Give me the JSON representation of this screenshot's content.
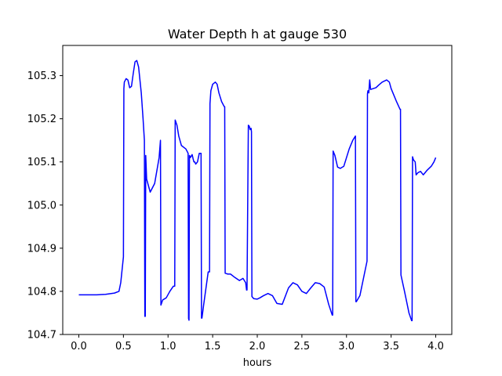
{
  "chart_data": {
    "type": "line",
    "title": "Water Depth h at gauge 530",
    "xlabel": "hours",
    "ylabel": "",
    "xlim": [
      -0.18,
      4.18
    ],
    "ylim": [
      104.7,
      105.37
    ],
    "grid": false,
    "xticks": [
      0.0,
      0.5,
      1.0,
      1.5,
      2.0,
      2.5,
      3.0,
      3.5,
      4.0
    ],
    "xtick_labels": [
      "0.0",
      "0.5",
      "1.0",
      "1.5",
      "2.0",
      "2.5",
      "3.0",
      "3.5",
      "4.0"
    ],
    "yticks": [
      104.7,
      104.8,
      104.9,
      105.0,
      105.1,
      105.2,
      105.3
    ],
    "ytick_labels": [
      "104.7",
      "104.8",
      "104.9",
      "105.0",
      "105.1",
      "105.2",
      "105.3"
    ],
    "series": [
      {
        "color": "#0000ff",
        "x": [
          0.0,
          0.2,
          0.3,
          0.4,
          0.45,
          0.47,
          0.5,
          0.505,
          0.51,
          0.53,
          0.55,
          0.57,
          0.59,
          0.61,
          0.63,
          0.65,
          0.67,
          0.7,
          0.72,
          0.735,
          0.74,
          0.745,
          0.75,
          0.76,
          0.8,
          0.85,
          0.9,
          0.915,
          0.92,
          0.94,
          0.98,
          1.02,
          1.06,
          1.075,
          1.08,
          1.1,
          1.12,
          1.15,
          1.2,
          1.225,
          1.23,
          1.235,
          1.24,
          1.25,
          1.27,
          1.28,
          1.29,
          1.3,
          1.31,
          1.33,
          1.35,
          1.37,
          1.375,
          1.38,
          1.4,
          1.45,
          1.465,
          1.47,
          1.48,
          1.5,
          1.53,
          1.55,
          1.57,
          1.6,
          1.63,
          1.635,
          1.64,
          1.67,
          1.7,
          1.75,
          1.8,
          1.84,
          1.87,
          1.88,
          1.885,
          1.9,
          1.91,
          1.92,
          1.93,
          1.935,
          1.94,
          1.96,
          2.0,
          2.03,
          2.07,
          2.12,
          2.17,
          2.22,
          2.28,
          2.35,
          2.4,
          2.45,
          2.5,
          2.55,
          2.6,
          2.65,
          2.7,
          2.75,
          2.8,
          2.84,
          2.845,
          2.85,
          2.87,
          2.9,
          2.93,
          2.97,
          3.0,
          3.03,
          3.07,
          3.1,
          3.105,
          3.11,
          3.15,
          3.2,
          3.23,
          3.235,
          3.24,
          3.25,
          3.26,
          3.27,
          3.3,
          3.33,
          3.36,
          3.4,
          3.45,
          3.48,
          3.5,
          3.53,
          3.56,
          3.6,
          3.605,
          3.61,
          3.65,
          3.7,
          3.73,
          3.735,
          3.74,
          3.75,
          3.77,
          3.78,
          3.8,
          3.83,
          3.86,
          3.9,
          3.95,
          3.98,
          4.0
        ],
        "y": [
          104.792,
          104.792,
          104.793,
          104.796,
          104.8,
          104.82,
          104.88,
          105.27,
          105.285,
          105.293,
          105.29,
          105.272,
          105.275,
          105.305,
          105.332,
          105.335,
          105.32,
          105.26,
          105.2,
          105.15,
          104.742,
          104.742,
          105.115,
          105.06,
          105.03,
          105.05,
          105.11,
          105.15,
          104.768,
          104.78,
          104.785,
          104.8,
          104.812,
          104.812,
          105.197,
          105.185,
          105.16,
          105.138,
          105.13,
          105.12,
          104.737,
          104.733,
          105.115,
          105.11,
          105.117,
          105.108,
          105.1,
          105.1,
          105.095,
          105.1,
          105.12,
          105.12,
          104.738,
          104.738,
          104.77,
          104.845,
          104.845,
          105.235,
          105.265,
          105.28,
          105.285,
          105.28,
          105.26,
          105.24,
          105.228,
          105.228,
          104.842,
          104.84,
          104.84,
          104.832,
          104.825,
          104.83,
          104.82,
          104.803,
          104.803,
          105.185,
          105.183,
          105.175,
          105.178,
          105.17,
          104.788,
          104.783,
          104.782,
          104.785,
          104.79,
          104.795,
          104.79,
          104.772,
          104.77,
          104.808,
          104.82,
          104.815,
          104.8,
          104.795,
          104.808,
          104.82,
          104.818,
          104.81,
          104.77,
          104.745,
          104.745,
          105.125,
          105.115,
          105.088,
          105.085,
          105.09,
          105.11,
          105.13,
          105.15,
          105.16,
          104.776,
          104.776,
          104.79,
          104.84,
          104.87,
          105.258,
          105.265,
          105.26,
          105.29,
          105.268,
          105.27,
          105.272,
          105.278,
          105.285,
          105.29,
          105.285,
          105.27,
          105.255,
          105.24,
          105.222,
          105.222,
          104.838,
          104.8,
          104.75,
          104.732,
          104.732,
          105.112,
          105.105,
          105.1,
          105.07,
          105.075,
          105.078,
          105.07,
          105.08,
          105.09,
          105.1,
          105.11
        ]
      }
    ]
  }
}
